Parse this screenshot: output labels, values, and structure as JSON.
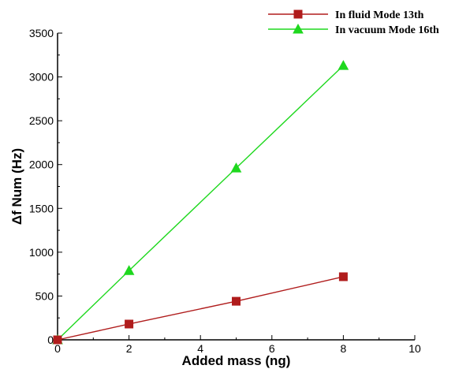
{
  "chart_data": {
    "type": "line",
    "xlabel": "Added mass (ng)",
    "ylabel": "Δf Num (Hz)",
    "xlim": [
      0,
      10
    ],
    "ylim": [
      0,
      3500
    ],
    "xticks": [
      0,
      2,
      4,
      6,
      8,
      10
    ],
    "yticks": [
      0,
      500,
      1000,
      1500,
      2000,
      2500,
      3000,
      3500
    ],
    "grid": false,
    "legend_position": "top-right",
    "series": [
      {
        "name": "In fluid Mode 13th",
        "color": "#b01c1c",
        "marker": "square",
        "x": [
          0,
          2,
          5,
          8
        ],
        "y": [
          0,
          180,
          440,
          720
        ]
      },
      {
        "name": "In vacuum Mode 16th",
        "color": "#1ed81e",
        "marker": "triangle",
        "x": [
          0,
          2,
          5,
          8
        ],
        "y": [
          0,
          790,
          1960,
          3130
        ]
      }
    ]
  }
}
